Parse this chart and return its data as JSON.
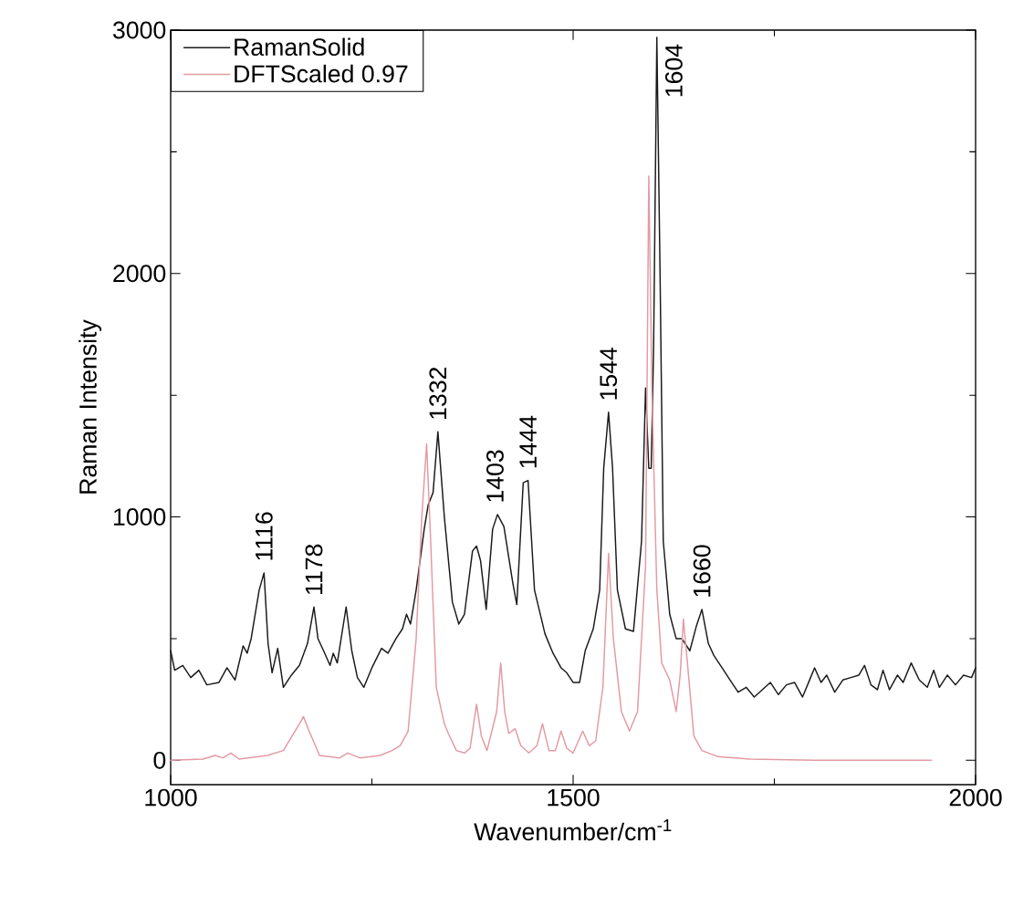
{
  "chart_data": {
    "type": "line",
    "xlabel": "Wavenumber/cm$^{-1}$",
    "ylabel": "Raman Intensity",
    "xlim": [
      1000,
      2000
    ],
    "ylim": [
      -100,
      3000
    ],
    "xticks": [
      1000,
      1500,
      2000
    ],
    "yticks": [
      0,
      1000,
      2000,
      3000
    ],
    "legend": "top left",
    "grid": false,
    "marker": "none",
    "line_style": "solid",
    "series": [
      {
        "name": "RamanSolid",
        "color": "#1a1a1a",
        "x": [
          1000,
          1005,
          1015,
          1025,
          1035,
          1045,
          1060,
          1070,
          1080,
          1090,
          1095,
          1100,
          1110,
          1116,
          1121,
          1126,
          1133,
          1140,
          1150,
          1160,
          1170,
          1178,
          1183,
          1190,
          1198,
          1202,
          1207,
          1218,
          1225,
          1232,
          1240,
          1250,
          1262,
          1270,
          1280,
          1288,
          1293,
          1298,
          1305,
          1315,
          1320,
          1326,
          1332,
          1340,
          1350,
          1358,
          1365,
          1375,
          1380,
          1385,
          1392,
          1400,
          1406,
          1414,
          1425,
          1430,
          1438,
          1444,
          1452,
          1465,
          1475,
          1485,
          1492,
          1500,
          1508,
          1515,
          1525,
          1533,
          1538,
          1544,
          1549,
          1555,
          1565,
          1575,
          1585,
          1590,
          1594,
          1597,
          1600,
          1604,
          1608,
          1612,
          1620,
          1628,
          1635,
          1645,
          1653,
          1660,
          1668,
          1675,
          1685,
          1695,
          1705,
          1715,
          1725,
          1735,
          1745,
          1755,
          1765,
          1775,
          1785,
          1795,
          1800,
          1808,
          1815,
          1825,
          1835,
          1845,
          1855,
          1862,
          1870,
          1878,
          1885,
          1893,
          1903,
          1910,
          1920,
          1930,
          1940,
          1948,
          1955,
          1965,
          1975,
          1985,
          1995,
          2000
        ],
        "values": [
          450,
          370,
          390,
          340,
          370,
          310,
          320,
          380,
          330,
          470,
          440,
          500,
          700,
          770,
          480,
          360,
          460,
          300,
          350,
          390,
          480,
          630,
          500,
          450,
          390,
          440,
          400,
          630,
          450,
          340,
          300,
          380,
          460,
          440,
          500,
          540,
          600,
          560,
          700,
          950,
          1050,
          1100,
          1350,
          1000,
          650,
          560,
          600,
          860,
          880,
          820,
          620,
          950,
          1010,
          960,
          730,
          640,
          1140,
          1150,
          700,
          520,
          440,
          380,
          360,
          320,
          320,
          450,
          540,
          700,
          1200,
          1430,
          1200,
          700,
          540,
          530,
          900,
          1530,
          1200,
          1200,
          1700,
          2970,
          2000,
          900,
          600,
          500,
          500,
          450,
          550,
          620,
          480,
          430,
          380,
          330,
          280,
          300,
          260,
          290,
          320,
          270,
          310,
          320,
          260,
          340,
          380,
          320,
          350,
          280,
          330,
          340,
          350,
          390,
          310,
          290,
          370,
          290,
          350,
          320,
          400,
          330,
          300,
          370,
          300,
          350,
          310,
          350,
          340,
          380
        ]
      },
      {
        "name": "DFTScaled 0.97",
        "color": "#e39aa3",
        "x": [
          1000,
          1040,
          1055,
          1065,
          1075,
          1085,
          1120,
          1140,
          1160,
          1165,
          1172,
          1185,
          1210,
          1220,
          1235,
          1260,
          1275,
          1285,
          1295,
          1305,
          1312,
          1318,
          1323,
          1330,
          1340,
          1345,
          1355,
          1365,
          1372,
          1380,
          1386,
          1393,
          1405,
          1410,
          1415,
          1420,
          1428,
          1435,
          1445,
          1455,
          1462,
          1470,
          1478,
          1485,
          1492,
          1500,
          1512,
          1520,
          1528,
          1537,
          1544,
          1550,
          1560,
          1570,
          1580,
          1590,
          1594,
          1598,
          1604,
          1610,
          1620,
          1628,
          1633,
          1637,
          1642,
          1650,
          1660,
          1680,
          1720,
          1800,
          1945
        ],
        "values": [
          0,
          5,
          20,
          10,
          30,
          5,
          20,
          40,
          150,
          180,
          120,
          20,
          10,
          30,
          10,
          20,
          40,
          60,
          120,
          500,
          1000,
          1300,
          900,
          300,
          150,
          110,
          40,
          30,
          50,
          230,
          100,
          40,
          200,
          400,
          200,
          110,
          130,
          60,
          30,
          60,
          150,
          40,
          40,
          120,
          50,
          30,
          120,
          60,
          80,
          300,
          850,
          500,
          200,
          120,
          200,
          800,
          2400,
          1500,
          700,
          400,
          330,
          200,
          350,
          580,
          400,
          100,
          40,
          15,
          5,
          0,
          0
        ]
      }
    ],
    "annotations": [
      {
        "text": "1116",
        "x": 1116,
        "y": 770
      },
      {
        "text": "1178",
        "x": 1178,
        "y": 630
      },
      {
        "text": "1332",
        "x": 1332,
        "y": 1350
      },
      {
        "text": "1403",
        "x": 1403,
        "y": 1010
      },
      {
        "text": "1444",
        "x": 1444,
        "y": 1150
      },
      {
        "text": "1544",
        "x": 1544,
        "y": 1430
      },
      {
        "text": "1604",
        "x": 1604,
        "y": 2970
      },
      {
        "text": "1660",
        "x": 1660,
        "y": 620
      }
    ]
  }
}
